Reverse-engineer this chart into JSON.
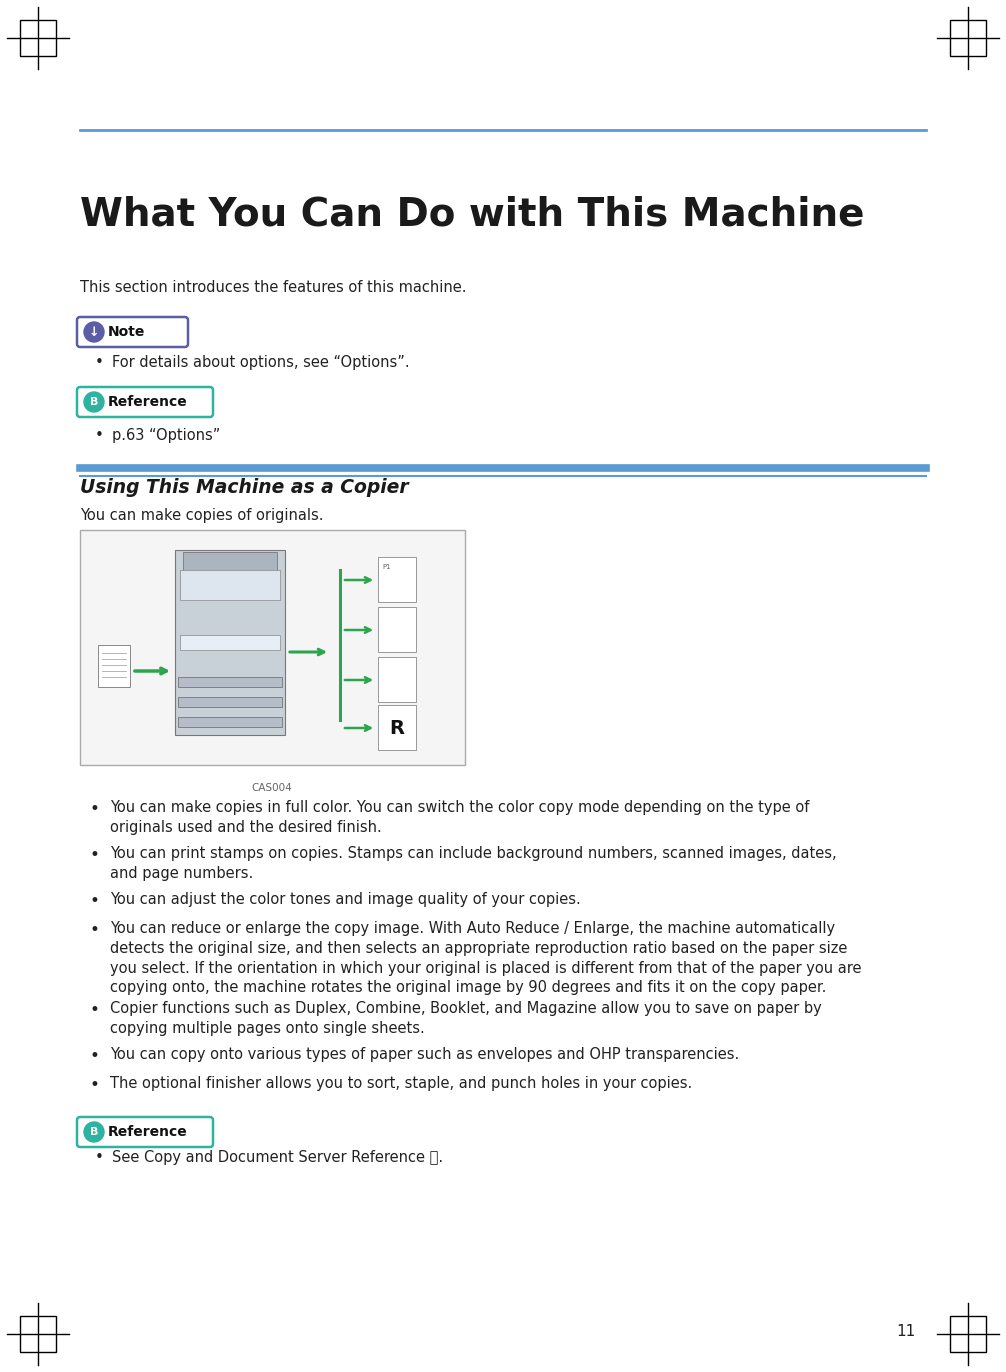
{
  "bg_color": "#ffffff",
  "figw": 10.06,
  "figh": 13.72,
  "dpi": 100,
  "top_line_color": "#5b9bd5",
  "title": "What You Can Do with This Machine",
  "title_fontsize": 28,
  "intro_text": "This section introduces the features of this machine.",
  "note_text": "Note",
  "note_badge_color": "#5b5ea6",
  "note_bullet": "For details about options, see “Options”.",
  "ref_text": "Reference",
  "ref_badge_color": "#2db3a0",
  "ref_bullet": "p.63 “Options”",
  "section_line_color": "#5b9bd5",
  "section_title": "Using This Machine as a Copier",
  "copier_intro": "You can make copies of originals.",
  "caption": "CAS004",
  "bullets": [
    "You can make copies in full color. You can switch the color copy mode depending on the type of\noriginals used and the desired finish.",
    "You can print stamps on copies. Stamps can include background numbers, scanned images, dates,\nand page numbers.",
    "You can adjust the color tones and image quality of your copies.",
    "You can reduce or enlarge the copy image. With Auto Reduce / Enlarge, the machine automatically\ndetects the original size, and then selects an appropriate reproduction ratio based on the paper size\nyou select. If the orientation in which your original is placed is different from that of the paper you are\ncopying onto, the machine rotates the original image by 90 degrees and fits it on the copy paper.",
    "Copier functions such as Duplex, Combine, Booklet, and Magazine allow you to save on paper by\ncopying multiple pages onto single sheets.",
    "You can copy onto various types of paper such as envelopes and OHP transparencies.",
    "The optional finisher allows you to sort, staple, and punch holes in your copies."
  ],
  "ref2_bullet": "See Copy and Document Server Reference Ⓢ.",
  "page_number": "11",
  "green_arrow": "#2da44e",
  "body_fontsize": 10.5,
  "bullet_fontsize": 10.5
}
